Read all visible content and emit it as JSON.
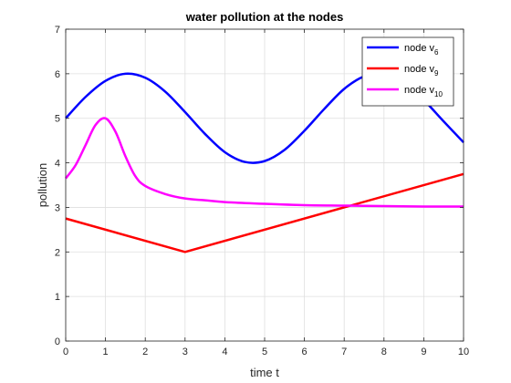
{
  "chart_data": {
    "type": "line",
    "title": "water pollution at the nodes",
    "xlabel": "time t",
    "ylabel": "pollution",
    "xlim": [
      0,
      10
    ],
    "ylim": [
      0,
      7
    ],
    "xticks": [
      0,
      1,
      2,
      3,
      4,
      5,
      6,
      7,
      8,
      9,
      10
    ],
    "yticks": [
      0,
      1,
      2,
      3,
      4,
      5,
      6,
      7
    ],
    "grid": true,
    "legend_position": "top-right",
    "series": [
      {
        "name": "node v",
        "subscript": "6",
        "color": "#0000ff",
        "x": [
          0,
          0.5,
          1,
          1.5,
          2,
          2.5,
          3,
          3.5,
          4,
          4.5,
          5,
          5.5,
          6,
          6.5,
          7,
          7.5,
          8,
          8.5,
          9,
          9.5,
          10
        ],
        "y": [
          5.0,
          5.48,
          5.84,
          6.0,
          5.91,
          5.6,
          5.14,
          4.65,
          4.24,
          4.02,
          4.04,
          4.29,
          4.72,
          5.21,
          5.66,
          5.94,
          5.99,
          5.8,
          5.41,
          4.93,
          4.46
        ]
      },
      {
        "name": "node v",
        "subscript": "9",
        "color": "#ff0000",
        "x": [
          0,
          3,
          10
        ],
        "y": [
          2.75,
          2.0,
          3.75
        ]
      },
      {
        "name": "node v",
        "subscript": "10",
        "color": "#ff00ff",
        "x": [
          0,
          0.25,
          0.5,
          0.75,
          1,
          1.25,
          1.5,
          1.75,
          2,
          2.5,
          3,
          3.5,
          4,
          5,
          6,
          7,
          8,
          9,
          10
        ],
        "y": [
          3.65,
          3.95,
          4.4,
          4.85,
          5.0,
          4.7,
          4.15,
          3.7,
          3.48,
          3.3,
          3.2,
          3.16,
          3.12,
          3.08,
          3.05,
          3.04,
          3.03,
          3.02,
          3.02
        ]
      }
    ]
  }
}
